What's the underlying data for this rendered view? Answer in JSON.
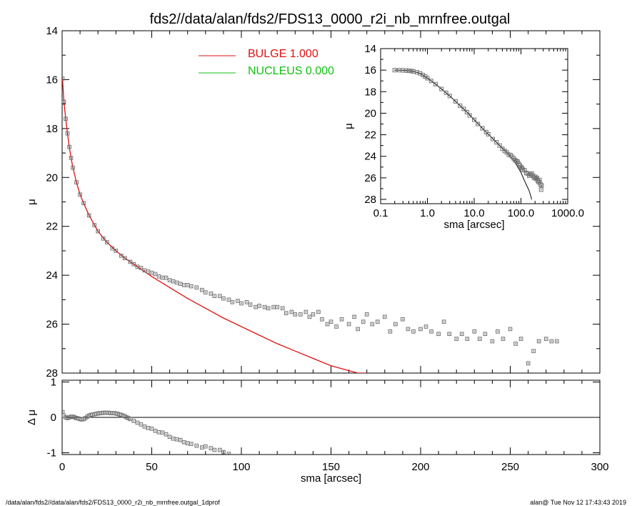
{
  "title": "fds2//data/alan/fds2/FDS13_0000_r2i_nb_mrnfree.outgal",
  "footer_left": "/data/alan/fds2//data/alan/fds2/FDS13_0000_r2i_nb_mrnfree.outgal_1dprof",
  "footer_right": "alan@  Tue Nov 12 17:43:43 2019",
  "colors": {
    "bulge": "#e01010",
    "nucleus": "#10c010",
    "points": "#707070",
    "axes": "#000000"
  },
  "legend": [
    {
      "label": "BULGE  1.000",
      "color": "#e01010"
    },
    {
      "label": "NUCLEUS  0.000",
      "color": "#10c010"
    }
  ],
  "chart_data": [
    {
      "type": "scatter",
      "panel": "main",
      "xlabel": "",
      "ylabel": "μ",
      "xlim": [
        0,
        300
      ],
      "ylim": [
        28,
        14
      ],
      "y_inverted": true,
      "x_ticks": [
        0,
        50,
        100,
        150,
        200,
        250,
        300
      ],
      "y_ticks": [
        14,
        16,
        18,
        20,
        22,
        24,
        26,
        28
      ],
      "series": [
        {
          "name": "BULGE  1.000",
          "kind": "line",
          "x": [
            0.2,
            1,
            2,
            3,
            4,
            5,
            6,
            8,
            10,
            12,
            15,
            20,
            25,
            30,
            35,
            40,
            50,
            60,
            70,
            80,
            90,
            100,
            110,
            120,
            130,
            140,
            150,
            160,
            165,
            170
          ],
          "y": [
            15.95,
            16.9,
            17.6,
            18.2,
            18.75,
            19.2,
            19.6,
            20.2,
            20.7,
            21.05,
            21.55,
            22.2,
            22.65,
            23.0,
            23.3,
            23.55,
            24.05,
            24.5,
            24.95,
            25.35,
            25.75,
            26.1,
            26.45,
            26.8,
            27.1,
            27.4,
            27.7,
            27.9,
            28.0,
            28.0
          ]
        },
        {
          "name": "",
          "kind": "points",
          "x": [
            0.2,
            1,
            2,
            3,
            4,
            5,
            6,
            8,
            10,
            12,
            15,
            18,
            20,
            23,
            25,
            28,
            30,
            33,
            35,
            38,
            40,
            42,
            44,
            46,
            48,
            50,
            52,
            54,
            56,
            58,
            60,
            62,
            64,
            66,
            68,
            70,
            72,
            75,
            78,
            80,
            83,
            85,
            88,
            90,
            93,
            95,
            98,
            100,
            103,
            105,
            108,
            110,
            113,
            115,
            118,
            120,
            123,
            125,
            128,
            130,
            133,
            136,
            138,
            140,
            143,
            145,
            148,
            150,
            153,
            156,
            160,
            163,
            165,
            168,
            170,
            173,
            176,
            180,
            183,
            186,
            190,
            193,
            196,
            200,
            203,
            206,
            210,
            213,
            216,
            220,
            223,
            226,
            230,
            233,
            236,
            240,
            243,
            246,
            250,
            253,
            256,
            260,
            263,
            266,
            270,
            273,
            276
          ],
          "y": [
            15.95,
            16.9,
            17.6,
            18.2,
            18.75,
            19.2,
            19.6,
            20.2,
            20.7,
            21.05,
            21.55,
            21.95,
            22.2,
            22.5,
            22.65,
            22.9,
            23.0,
            23.2,
            23.3,
            23.45,
            23.55,
            23.65,
            23.7,
            23.8,
            23.85,
            23.9,
            23.95,
            24.05,
            24.1,
            24.1,
            24.2,
            24.25,
            24.3,
            24.35,
            24.4,
            24.4,
            24.45,
            24.5,
            24.6,
            24.7,
            24.75,
            24.85,
            24.85,
            24.95,
            25.0,
            25.1,
            25.05,
            25.15,
            25.1,
            25.2,
            25.3,
            25.25,
            25.3,
            25.35,
            25.3,
            25.3,
            25.35,
            25.55,
            25.5,
            25.6,
            25.6,
            25.5,
            25.7,
            25.6,
            25.5,
            25.8,
            26.0,
            25.9,
            26.1,
            25.8,
            26.0,
            25.7,
            26.2,
            25.9,
            25.6,
            26.0,
            25.9,
            25.7,
            26.3,
            26.0,
            25.8,
            26.2,
            26.3,
            26.2,
            26.1,
            26.3,
            26.4,
            25.9,
            26.4,
            26.6,
            26.4,
            26.6,
            26.3,
            26.6,
            26.4,
            26.7,
            26.3,
            26.6,
            26.2,
            26.8,
            26.6,
            27.6,
            27.1,
            26.7,
            26.6,
            26.7,
            26.7
          ]
        }
      ]
    },
    {
      "type": "scatter",
      "panel": "residual",
      "xlabel": "sma [arcsec]",
      "ylabel": "Δ μ",
      "xlim": [
        0,
        300
      ],
      "ylim": [
        -1.05,
        1.05
      ],
      "x_ticks": [
        0,
        50,
        100,
        150,
        200,
        250,
        300
      ],
      "x_tick_labels": [
        "0",
        "50",
        "100",
        "150",
        "200",
        "250",
        "300"
      ],
      "y_ticks": [
        1,
        0,
        -1
      ],
      "zero_line": true,
      "series": [
        {
          "name": "",
          "kind": "points",
          "x": [
            0.2,
            1,
            2,
            3,
            4,
            5,
            6,
            7,
            8,
            9,
            10,
            11,
            12,
            13,
            14,
            15,
            16,
            17,
            18,
            19,
            20,
            21,
            22,
            23,
            24,
            25,
            26,
            27,
            28,
            29,
            30,
            31,
            32,
            33,
            34,
            35,
            36,
            37,
            38,
            40,
            42,
            44,
            46,
            48,
            50,
            52,
            54,
            56,
            58,
            60,
            62,
            64,
            66,
            68,
            70,
            72,
            75,
            78,
            80,
            83,
            85,
            88,
            90,
            93
          ],
          "y": [
            0.15,
            0.05,
            0.0,
            -0.02,
            0.0,
            0.02,
            0.02,
            0.0,
            -0.02,
            -0.03,
            -0.05,
            -0.06,
            -0.05,
            -0.02,
            0.02,
            0.05,
            0.07,
            0.08,
            0.09,
            0.1,
            0.11,
            0.12,
            0.12,
            0.13,
            0.13,
            0.13,
            0.13,
            0.12,
            0.12,
            0.12,
            0.11,
            0.1,
            0.08,
            0.07,
            0.05,
            0.03,
            0.0,
            -0.02,
            -0.05,
            -0.1,
            -0.15,
            -0.2,
            -0.26,
            -0.3,
            -0.32,
            -0.38,
            -0.42,
            -0.43,
            -0.48,
            -0.55,
            -0.6,
            -0.62,
            -0.64,
            -0.7,
            -0.73,
            -0.75,
            -0.8,
            -0.85,
            -0.82,
            -0.87,
            -0.92,
            -0.92,
            -0.98,
            -1.03
          ]
        }
      ]
    },
    {
      "type": "scatter",
      "panel": "inset",
      "xlabel": "sma [arcsec]",
      "ylabel": "μ",
      "x_scale": "log",
      "xlim": [
        0.1,
        1000
      ],
      "ylim": [
        28.4,
        14
      ],
      "x_ticks": [
        0.1,
        1,
        10,
        100,
        1000
      ],
      "x_tick_labels": [
        "0.1",
        "1.0",
        "10.0",
        "100.0",
        "1000.0"
      ],
      "y_ticks": [
        14,
        16,
        18,
        20,
        22,
        24,
        26,
        28
      ],
      "series": [
        {
          "name": "",
          "kind": "line",
          "x": [
            0.2,
            0.3,
            0.4,
            0.5,
            0.7,
            1,
            1.5,
            2,
            3,
            4,
            5,
            7,
            10,
            15,
            20,
            30,
            40,
            50,
            60,
            70,
            80,
            100,
            120,
            150,
            170
          ],
          "y": [
            16.0,
            16.02,
            16.06,
            16.12,
            16.3,
            16.75,
            17.3,
            17.75,
            18.4,
            18.9,
            19.3,
            19.9,
            20.6,
            21.4,
            21.95,
            22.7,
            23.25,
            23.6,
            24.0,
            24.35,
            24.8,
            25.5,
            26.3,
            27.2,
            28.0
          ]
        },
        {
          "name": "",
          "kind": "points",
          "x": [
            0.2,
            0.25,
            0.3,
            0.35,
            0.4,
            0.45,
            0.5,
            0.6,
            0.7,
            0.8,
            0.9,
            1,
            1.2,
            1.5,
            2,
            2.5,
            3,
            4,
            5,
            6,
            7,
            8,
            10,
            12,
            15,
            18,
            20,
            25,
            30,
            35,
            40,
            45,
            50,
            55,
            60,
            65,
            70,
            75,
            80,
            85,
            90,
            95,
            100,
            105,
            110,
            120,
            130,
            140,
            150,
            160,
            170,
            180,
            190,
            200,
            210,
            220,
            230,
            240,
            250,
            260,
            270,
            276
          ],
          "y": [
            16.0,
            16.0,
            16.02,
            16.04,
            16.06,
            16.08,
            16.12,
            16.2,
            16.3,
            16.45,
            16.6,
            16.75,
            17.0,
            17.3,
            17.75,
            18.1,
            18.4,
            18.9,
            19.3,
            19.6,
            19.9,
            20.2,
            20.6,
            21.0,
            21.4,
            21.75,
            21.95,
            22.4,
            22.7,
            23.0,
            23.3,
            23.5,
            23.65,
            23.85,
            23.9,
            24.05,
            24.2,
            24.35,
            24.45,
            24.5,
            24.7,
            24.85,
            25.0,
            25.1,
            25.25,
            25.3,
            25.55,
            25.6,
            25.8,
            25.7,
            25.6,
            25.8,
            26.0,
            25.9,
            26.1,
            26.0,
            26.3,
            26.4,
            26.2,
            26.6,
            27.1,
            26.7
          ]
        }
      ]
    }
  ]
}
